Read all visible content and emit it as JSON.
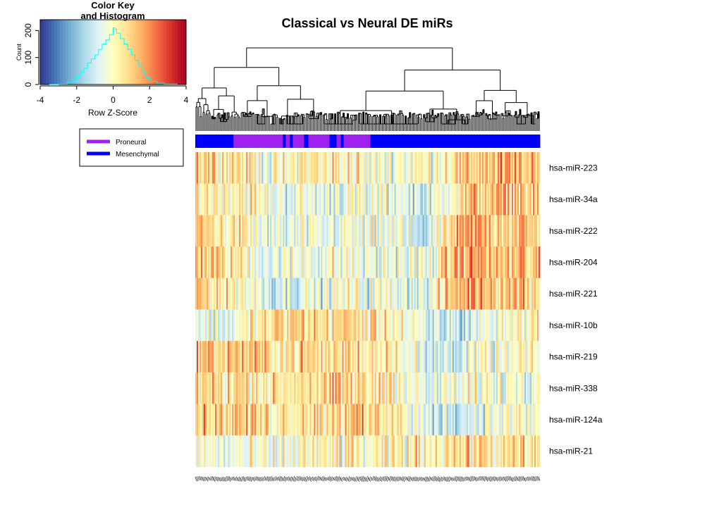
{
  "chart_data": [
    {
      "type": "heatmap",
      "title": "Classical vs Neural DE miRs",
      "rows": [
        "hsa-miR-223",
        "hsa-miR-34a",
        "hsa-miR-222",
        "hsa-miR-204",
        "hsa-miR-221",
        "hsa-miR-10b",
        "hsa-miR-219",
        "hsa-miR-338",
        "hsa-miR-124a",
        "hsa-miR-21"
      ],
      "column_count": 244,
      "column_dendrogram": true,
      "column_side_colors": {
        "legend": [
          {
            "name": "Proneural",
            "color": "#a020f0"
          },
          {
            "name": "Mesenchymal",
            "color": "#0000ff"
          }
        ],
        "runs": [
          {
            "group": "Mesenchymal",
            "count": 27
          },
          {
            "group": "Proneural",
            "count": 35
          },
          {
            "group": "Mesenchymal",
            "count": 2
          },
          {
            "group": "Proneural",
            "count": 3
          },
          {
            "group": "Mesenchymal",
            "count": 2
          },
          {
            "group": "Proneural",
            "count": 8
          },
          {
            "group": "Mesenchymal",
            "count": 3
          },
          {
            "group": "Proneural",
            "count": 15
          },
          {
            "group": "Mesenchymal",
            "count": 5
          },
          {
            "group": "Proneural",
            "count": 3
          },
          {
            "group": "Mesenchymal",
            "count": 2
          },
          {
            "group": "Proneural",
            "count": 19
          },
          {
            "group": "Mesenchymal",
            "count": 120
          }
        ]
      },
      "row_profiles": [
        [
          0.9,
          0.6,
          -0.3,
          0.3,
          0.2,
          -0.2,
          0.1,
          0.6,
          1.0,
          0.8
        ],
        [
          0.3,
          0.4,
          -0.3,
          -0.5,
          -0.3,
          -0.2,
          -0.8,
          0.6,
          0.9,
          0.7
        ],
        [
          0.8,
          0.3,
          -0.6,
          -0.6,
          -0.4,
          -0.3,
          -1.0,
          1.1,
          0.9,
          0.8
        ],
        [
          1.0,
          0.3,
          -0.5,
          -0.2,
          -0.3,
          -0.3,
          -0.4,
          1.3,
          0.8,
          0.9
        ],
        [
          0.9,
          0.2,
          -0.6,
          -0.5,
          -0.2,
          -0.2,
          -0.6,
          1.3,
          1.0,
          0.9
        ],
        [
          -0.5,
          -0.4,
          0.6,
          0.6,
          0.6,
          0.5,
          -0.8,
          -0.9,
          -0.2,
          0.4
        ],
        [
          0.8,
          0.9,
          0.6,
          0.5,
          0.5,
          0.7,
          -0.8,
          -0.6,
          -0.3,
          0.0
        ],
        [
          0.6,
          0.6,
          0.4,
          0.6,
          0.5,
          0.6,
          -0.6,
          -0.3,
          -0.2,
          0.2
        ],
        [
          0.9,
          0.8,
          0.5,
          0.6,
          0.8,
          0.7,
          -0.7,
          -0.8,
          -0.2,
          -0.1
        ],
        [
          -0.2,
          -0.4,
          -0.4,
          0.0,
          0.1,
          0.0,
          0.4,
          0.6,
          0.3,
          0.4
        ]
      ],
      "color_key": {
        "title": "Color Key\nand Histogram",
        "xlabel": "Row Z-Score",
        "ylabel": "Count",
        "xticks": [
          "-4",
          "-2",
          "0",
          "2",
          "4"
        ],
        "yticks": [
          "0",
          "100",
          "200"
        ],
        "xlim": [
          -4,
          4
        ],
        "ylim": [
          0,
          240
        ],
        "histogram_color": "#00ffff",
        "histogram_x": [
          -3.5,
          -3.0,
          -2.5,
          -2.2,
          -2.0,
          -1.8,
          -1.6,
          -1.4,
          -1.2,
          -1.0,
          -0.8,
          -0.6,
          -0.4,
          -0.2,
          0.0,
          0.1,
          0.2,
          0.4,
          0.6,
          0.8,
          1.0,
          1.2,
          1.4,
          1.6,
          1.8,
          2.0,
          2.4,
          2.8,
          3.5
        ],
        "histogram_counts": [
          0,
          2,
          8,
          15,
          30,
          45,
          60,
          80,
          95,
          110,
          130,
          150,
          165,
          185,
          210,
          205,
          190,
          170,
          150,
          130,
          110,
          90,
          70,
          45,
          25,
          12,
          5,
          2,
          0
        ]
      }
    }
  ]
}
